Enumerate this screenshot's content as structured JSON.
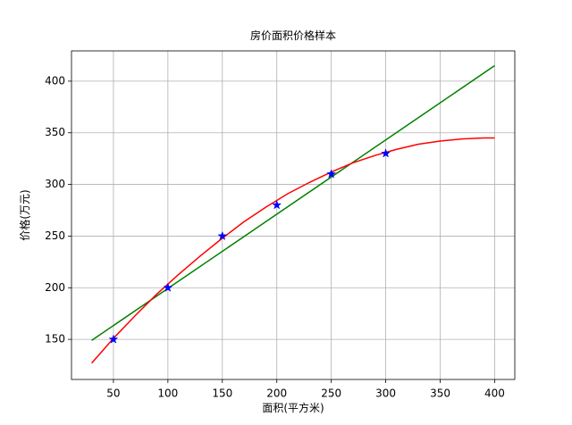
{
  "chart_data": {
    "type": "line",
    "title": "房价面积价格样本",
    "xlabel": "面积(平方米)",
    "ylabel": "价格(万元)",
    "xlim": [
      11.5,
      418.5
    ],
    "ylim": [
      111.2,
      429.3
    ],
    "xticks": [
      50,
      100,
      150,
      200,
      250,
      300,
      350,
      400
    ],
    "yticks": [
      150,
      200,
      250,
      300,
      350,
      400
    ],
    "grid": true,
    "series": [
      {
        "style": "scatter",
        "marker": "*",
        "color": "#0000ff",
        "x": [
          50,
          100,
          150,
          200,
          250,
          300
        ],
        "values": [
          150,
          200,
          250,
          280,
          310,
          330
        ]
      },
      {
        "style": "line",
        "color": "#008000",
        "x": [
          30,
          400
        ],
        "values": [
          149,
          415
        ]
      },
      {
        "style": "line",
        "color": "#ff0000",
        "x": [
          30,
          50,
          70,
          90,
          110,
          130,
          150,
          170,
          190,
          210,
          230,
          250,
          270,
          290,
          310,
          330,
          350,
          370,
          390,
          400
        ],
        "values": [
          127,
          151,
          173,
          194,
          213,
          231,
          248,
          264,
          278,
          291,
          302,
          312,
          321,
          328,
          334,
          339,
          342,
          344,
          345,
          345
        ]
      }
    ]
  }
}
